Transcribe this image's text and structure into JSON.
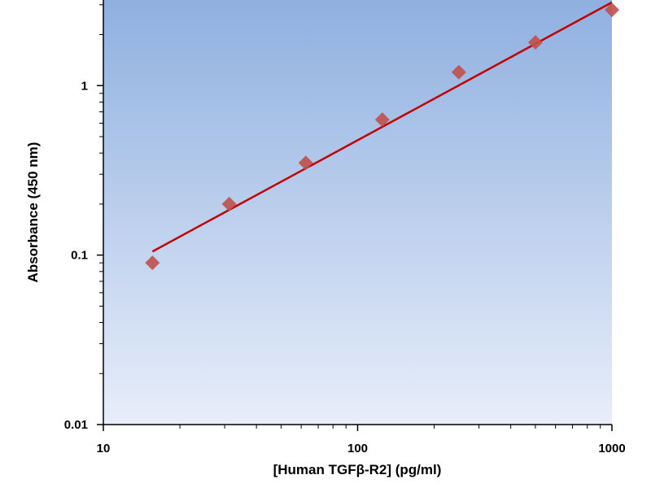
{
  "chart_data": {
    "type": "scatter",
    "title": "",
    "xlabel": "[Human TGFβ-R2] (pg/ml)",
    "ylabel": "Absorbance (450 nm)",
    "x_scale": "log",
    "y_scale": "log",
    "xlim": [
      10,
      1000
    ],
    "ylim": [
      0.01,
      3.2
    ],
    "x_ticks": [
      {
        "value": 10,
        "label": "10"
      },
      {
        "value": 100,
        "label": "100"
      },
      {
        "value": 1000,
        "label": "1000"
      }
    ],
    "y_ticks": [
      {
        "value": 0.01,
        "label": "0.01"
      },
      {
        "value": 0.1,
        "label": "0.1"
      },
      {
        "value": 1,
        "label": "1"
      }
    ],
    "grid": false,
    "legend": "none",
    "series": [
      {
        "type": "scatter",
        "marker": "diamond",
        "color": "#c0504d",
        "x": [
          15.6,
          31.25,
          62.5,
          125,
          250,
          500,
          1000
        ],
        "y": [
          0.09,
          0.2,
          0.35,
          0.63,
          1.2,
          1.8,
          2.8
        ]
      },
      {
        "type": "line",
        "color": "#c00000",
        "x": [
          15.6,
          1000
        ],
        "y": [
          0.105,
          3.1
        ]
      }
    ]
  }
}
